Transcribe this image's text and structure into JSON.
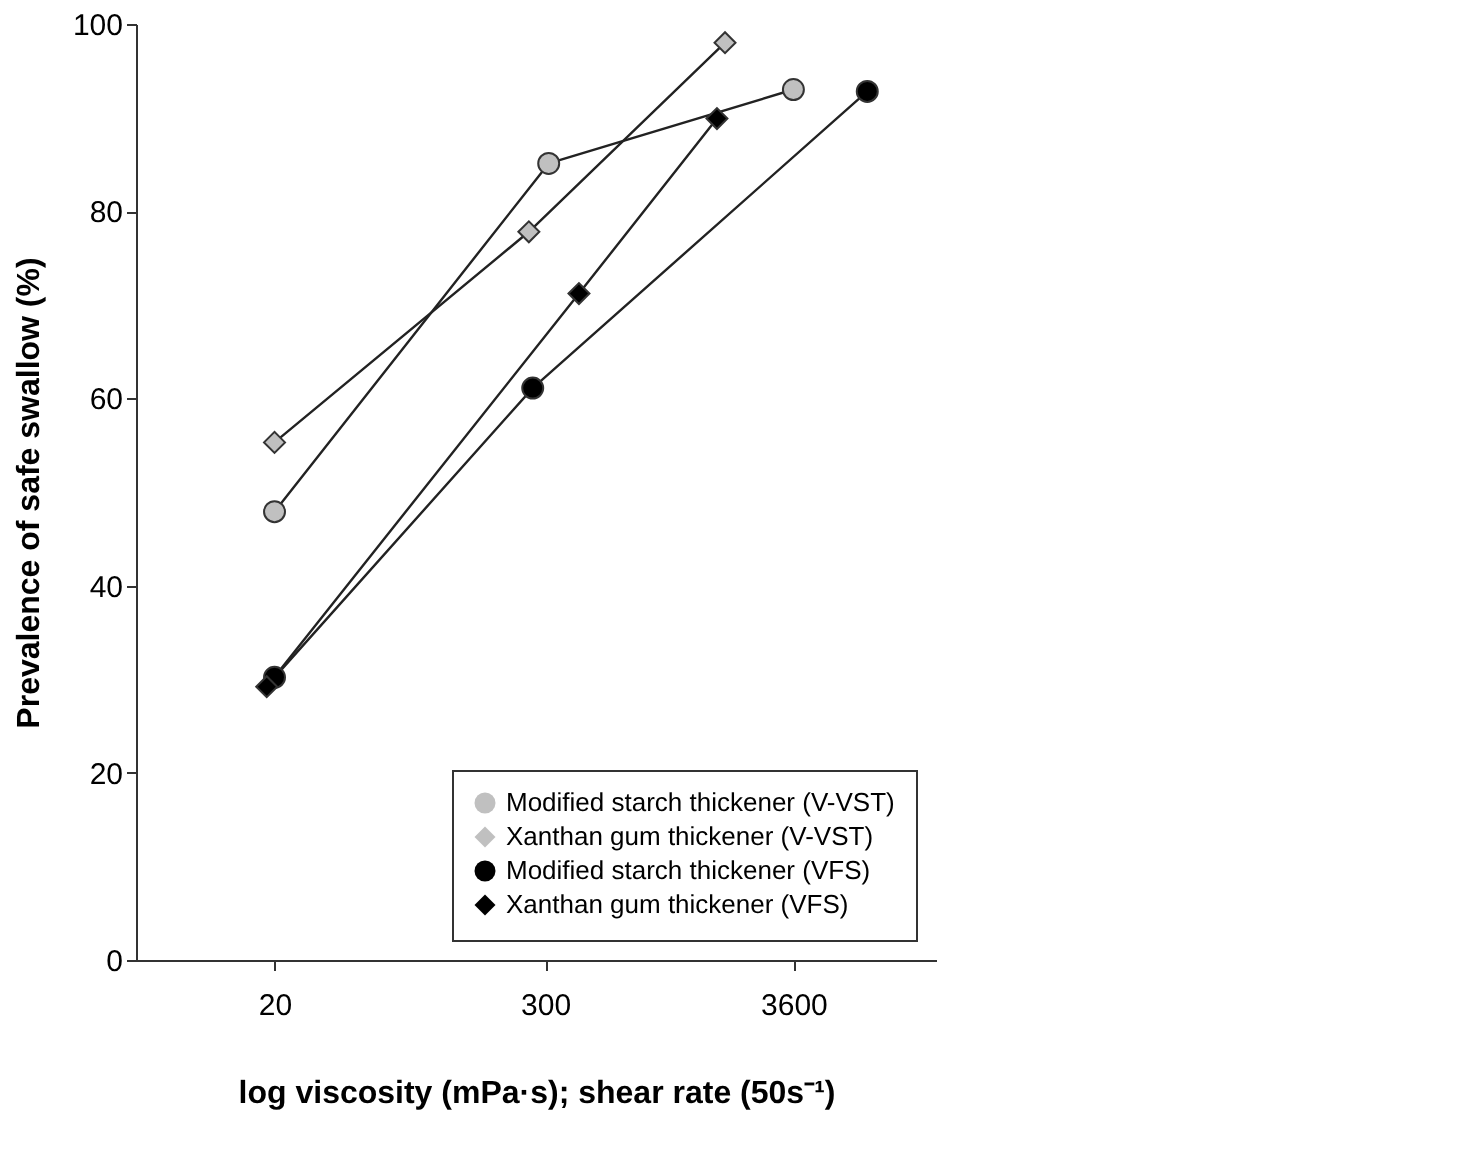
{
  "chart_data": {
    "type": "line",
    "xlabel": "log viscosity (mPa·s); shear rate (50s⁻¹)",
    "ylabel": "Prevalence of safe swallow (%)",
    "log": "x",
    "xlim": [
      5,
      15000
    ],
    "xticks": [
      20,
      300,
      3600
    ],
    "ylim": [
      0,
      100
    ],
    "yticks": [
      0,
      20,
      40,
      60,
      80,
      100
    ],
    "grid": false,
    "legend": "bottom right",
    "line_style": "solid",
    "series": [
      {
        "name": "Modified starch thickener (V-VST)",
        "color": "#c0c0c0",
        "marker": "circle",
        "x": [
          20,
          311,
          3600
        ],
        "values": [
          47.9,
          85.1,
          93.0
        ]
      },
      {
        "name": "Xanthan gum thickener (V-VST)",
        "color": "#c0c0c0",
        "marker": "diamond",
        "x": [
          20,
          255,
          1816
        ],
        "values": [
          55.3,
          77.8,
          98.0
        ]
      },
      {
        "name": "Modified starch thickener (VFS)",
        "color": "#000000",
        "marker": "circle",
        "x": [
          20,
          265,
          7540
        ],
        "values": [
          30.2,
          61.1,
          92.8
        ]
      },
      {
        "name": "Xanthan gum thickener (VFS)",
        "color": "#000000",
        "marker": "diamond",
        "x": [
          18.5,
          421,
          1675
        ],
        "values": [
          29.2,
          71.2,
          89.9
        ]
      }
    ]
  }
}
